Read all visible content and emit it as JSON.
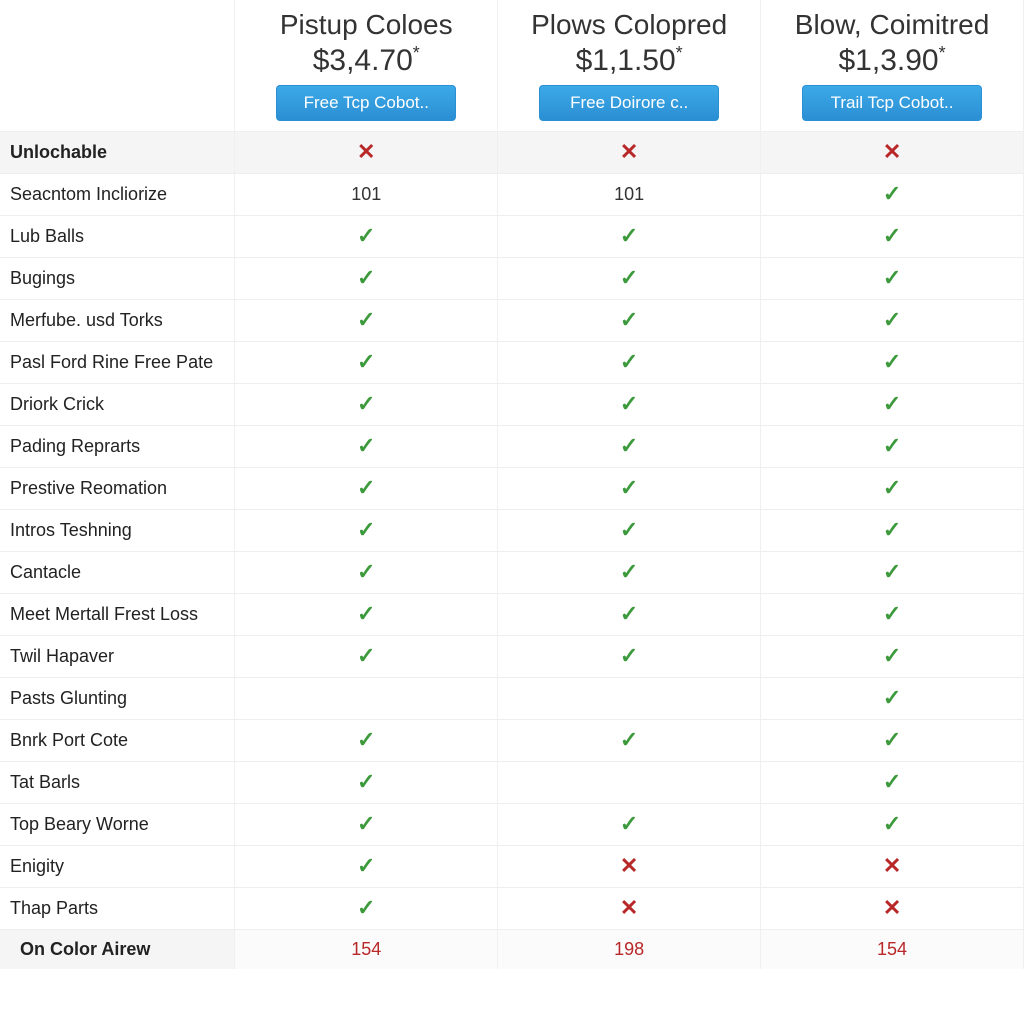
{
  "colors": {
    "check": "#3c9a3c",
    "cross": "#b82828",
    "button_bg_top": "#3ca9e8",
    "button_bg_bottom": "#2b8fd3",
    "text": "#333333",
    "border": "#eeeeee",
    "section_bg": "#f5f5f5"
  },
  "plans": [
    {
      "title": "Pistup Coloes",
      "price": "$3,4.70",
      "asterisk": "*",
      "button": "Free Tcp Cobot.."
    },
    {
      "title": "Plows Colopred",
      "price": "$1,1.50",
      "asterisk": "*",
      "button": "Free Doirore c.."
    },
    {
      "title": "Blow, Coimitred",
      "price": "$1,3.90",
      "asterisk": "*",
      "button": "Trail Tcp Cobot.."
    }
  ],
  "features": [
    {
      "label": "Unlochable",
      "bold": true,
      "section": true,
      "cells": [
        "cross",
        "cross",
        "cross"
      ]
    },
    {
      "label": "Seacntom Incliorize",
      "cells": [
        "101",
        "101",
        "check"
      ]
    },
    {
      "label": "Lub Balls",
      "cells": [
        "check",
        "check",
        "check"
      ]
    },
    {
      "label": "Bugings",
      "cells": [
        "check",
        "check",
        "check"
      ]
    },
    {
      "label": "Merfube. usd Torks",
      "cells": [
        "check",
        "check",
        "check"
      ]
    },
    {
      "label": "Pasl Ford Rine Free Pate",
      "cells": [
        "check",
        "check",
        "check"
      ]
    },
    {
      "label": "Driork Crick",
      "cells": [
        "check",
        "check",
        "check"
      ]
    },
    {
      "label": "Pading Reprarts",
      "cells": [
        "check",
        "check",
        "check"
      ]
    },
    {
      "label": "Prestive Reomation",
      "cells": [
        "check",
        "check",
        "check"
      ]
    },
    {
      "label": "Intros Teshning",
      "cells": [
        "check",
        "check",
        "check"
      ]
    },
    {
      "label": "Cantacle",
      "cells": [
        "check",
        "check",
        "check"
      ]
    },
    {
      "label": "Meet Mertall Frest Loss",
      "cells": [
        "check",
        "check",
        "check"
      ]
    },
    {
      "label": "Twil Hapaver",
      "cells": [
        "check",
        "check",
        "check"
      ]
    },
    {
      "label": "Pasts Glunting",
      "cells": [
        "",
        "",
        "check"
      ]
    },
    {
      "label": "Bnrk Port Cote",
      "cells": [
        "check",
        "check",
        "check"
      ]
    },
    {
      "label": "Tat Barls",
      "cells": [
        "check",
        "",
        "check"
      ]
    },
    {
      "label": "Top Beary Worne",
      "cells": [
        "check",
        "check",
        "check"
      ]
    },
    {
      "label": "Enigity",
      "cells": [
        "check",
        "cross",
        "cross"
      ]
    },
    {
      "label": "Thap Parts",
      "cells": [
        "check",
        "cross",
        "cross"
      ]
    }
  ],
  "footer": {
    "label": "On Color Airew",
    "bold": true,
    "cells": [
      "154",
      "198",
      "154"
    ]
  }
}
